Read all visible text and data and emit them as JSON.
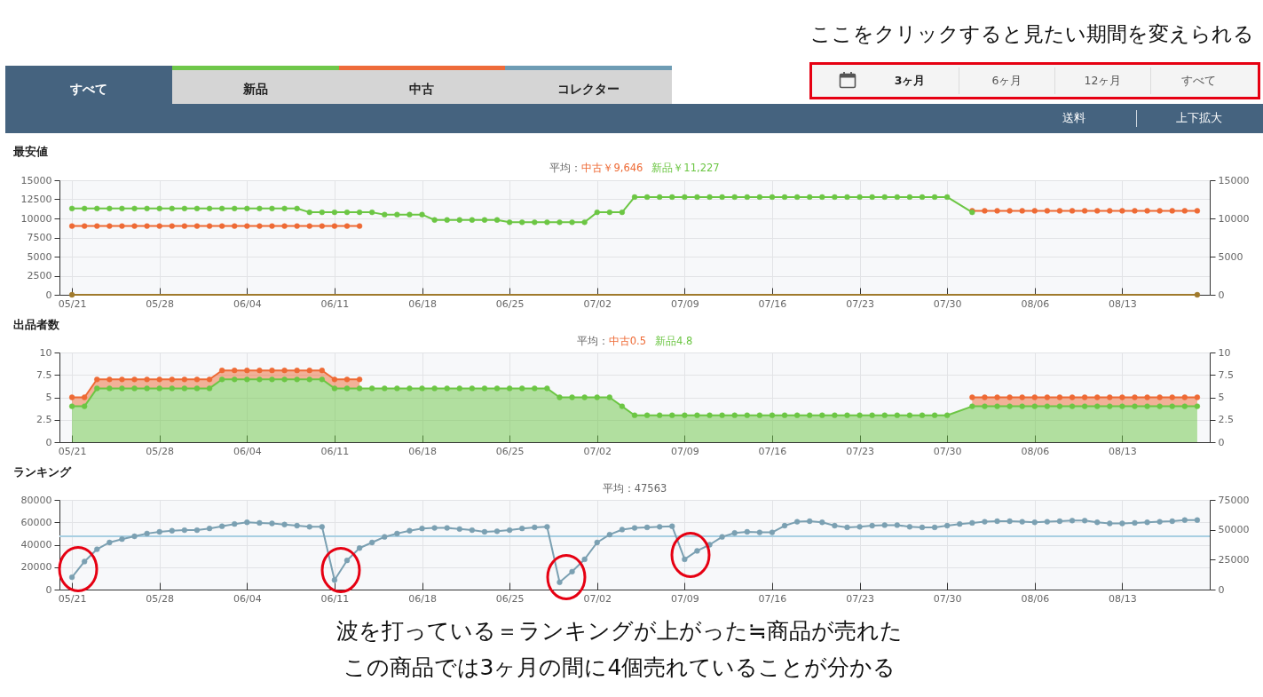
{
  "chart_data": [
    {
      "type": "other",
      "annotations": [
        "ここをクリックすると見たい期間を変えられる",
        "すべて",
        "新品",
        "中古",
        "コレクター",
        "3ヶ月",
        "6ヶ月",
        "12ヶ月",
        "すべて",
        "送料",
        "上下拡大"
      ]
    },
    {
      "type": "line",
      "title": "最安値",
      "legend_title": "平均：",
      "legend": "top",
      "grid": true,
      "marker": "circle",
      "xlim": [
        "--05-20",
        "--08-20"
      ],
      "xticks": [
        {
          "value": "--05-21",
          "label": "05/21"
        },
        {
          "value": "--05-28",
          "label": "05/28"
        },
        {
          "value": "--06-04",
          "label": "06/04"
        },
        {
          "value": "--06-11",
          "label": "06/11"
        },
        {
          "value": "--06-18",
          "label": "06/18"
        },
        {
          "value": "--06-25",
          "label": "06/25"
        },
        {
          "value": "--07-02",
          "label": "07/02"
        },
        {
          "value": "--07-09",
          "label": "07/09"
        },
        {
          "value": "--07-16",
          "label": "07/16"
        },
        {
          "value": "--07-23",
          "label": "07/23"
        },
        {
          "value": "--07-30",
          "label": "07/30"
        },
        {
          "value": "--08-06",
          "label": "08/06"
        },
        {
          "value": "--08-13",
          "label": "08/13"
        }
      ],
      "ylim": [
        0,
        15000
      ],
      "yticks": [
        0,
        2500,
        5000,
        7500,
        10000,
        12500,
        15000
      ],
      "y2lim": [
        0,
        15000
      ],
      "y2ticks": [
        0,
        5000,
        10000,
        15000
      ],
      "series": [
        {
          "name": "中古￥9,646",
          "color": "#ee6a35",
          "x": [
            "--05-21",
            "--05-22",
            "--05-23",
            "--05-24",
            "--05-25",
            "--05-26",
            "--05-27",
            "--05-28",
            "--05-29",
            "--05-30",
            "--05-31",
            "--06-01",
            "--06-02",
            "--06-03",
            "--06-04",
            "--06-05",
            "--06-06",
            "--06-07",
            "--06-08",
            "--06-09",
            "--06-10",
            "--06-11",
            "--06-12",
            "--06-13",
            "--06-14",
            "--08-01",
            "--08-02",
            "--08-03",
            "--08-04",
            "--08-05",
            "--08-06",
            "--08-07",
            "--08-08",
            "--08-09",
            "--08-10",
            "--08-11",
            "--08-12",
            "--08-13",
            "--08-14",
            "--08-15",
            "--08-16",
            "--08-17",
            "--08-18",
            "--08-19"
          ],
          "values": [
            9000,
            9000,
            9000,
            9000,
            9000,
            9000,
            9000,
            9000,
            9000,
            9000,
            9000,
            9000,
            9000,
            9000,
            9000,
            9000,
            9000,
            9000,
            9000,
            9000,
            9000,
            9000,
            9000,
            9000,
            null,
            11000,
            11000,
            11000,
            11000,
            11000,
            11000,
            11000,
            11000,
            11000,
            11000,
            11000,
            11000,
            11000,
            11000,
            11000,
            11000,
            11000,
            11000,
            11000
          ]
        },
        {
          "name": "新品￥11,227",
          "color": "#6cc644",
          "x": [
            "--05-21",
            "--05-22",
            "--05-23",
            "--05-24",
            "--05-25",
            "--05-26",
            "--05-27",
            "--05-28",
            "--05-29",
            "--05-30",
            "--05-31",
            "--06-01",
            "--06-02",
            "--06-03",
            "--06-04",
            "--06-05",
            "--06-06",
            "--06-07",
            "--06-08",
            "--06-09",
            "--06-10",
            "--06-11",
            "--06-12",
            "--06-13",
            "--06-14",
            "--06-15",
            "--06-16",
            "--06-17",
            "--06-18",
            "--06-19",
            "--06-20",
            "--06-21",
            "--06-22",
            "--06-23",
            "--06-24",
            "--06-25",
            "--06-26",
            "--06-27",
            "--06-28",
            "--06-29",
            "--06-30",
            "--07-01",
            "--07-02",
            "--07-03",
            "--07-04",
            "--07-05",
            "--07-06",
            "--07-07",
            "--07-08",
            "--07-09",
            "--07-10",
            "--07-11",
            "--07-12",
            "--07-13",
            "--07-14",
            "--07-15",
            "--07-16",
            "--07-17",
            "--07-18",
            "--07-19",
            "--07-20",
            "--07-21",
            "--07-22",
            "--07-23",
            "--07-24",
            "--07-25",
            "--07-26",
            "--07-27",
            "--07-28",
            "--07-29",
            "--07-30",
            "--08-01"
          ],
          "values": [
            11300,
            11300,
            11300,
            11300,
            11300,
            11300,
            11300,
            11300,
            11300,
            11300,
            11300,
            11300,
            11300,
            11300,
            11300,
            11300,
            11300,
            11300,
            11300,
            10800,
            10800,
            10800,
            10800,
            10800,
            10800,
            10500,
            10500,
            10500,
            10500,
            9800,
            9800,
            9800,
            9800,
            9800,
            9800,
            9500,
            9500,
            9500,
            9500,
            9500,
            9500,
            9500,
            10800,
            10800,
            10800,
            12800,
            12800,
            12800,
            12800,
            12800,
            12800,
            12800,
            12800,
            12800,
            12800,
            12800,
            12800,
            12800,
            12800,
            12800,
            12800,
            12800,
            12800,
            12800,
            12800,
            12800,
            12800,
            12800,
            12800,
            12800,
            12800,
            10800
          ]
        },
        {
          "color": "#a07a2c",
          "x": [
            "--05-21",
            "--08-19"
          ],
          "values": [
            0,
            0
          ]
        }
      ]
    },
    {
      "type": "area",
      "stacked": true,
      "title": "出品者数",
      "legend_title": "平均：",
      "legend": "top",
      "grid": true,
      "marker": "circle",
      "xlim": [
        "--05-20",
        "--08-20"
      ],
      "xticks": [
        {
          "value": "--05-21",
          "label": "05/21"
        },
        {
          "value": "--05-28",
          "label": "05/28"
        },
        {
          "value": "--06-04",
          "label": "06/04"
        },
        {
          "value": "--06-11",
          "label": "06/11"
        },
        {
          "value": "--06-18",
          "label": "06/18"
        },
        {
          "value": "--06-25",
          "label": "06/25"
        },
        {
          "value": "--07-02",
          "label": "07/02"
        },
        {
          "value": "--07-09",
          "label": "07/09"
        },
        {
          "value": "--07-16",
          "label": "07/16"
        },
        {
          "value": "--07-23",
          "label": "07/23"
        },
        {
          "value": "--07-30",
          "label": "07/30"
        },
        {
          "value": "--08-06",
          "label": "08/06"
        },
        {
          "value": "--08-13",
          "label": "08/13"
        }
      ],
      "ylim": [
        0,
        10
      ],
      "yticks": [
        0,
        2.5,
        5,
        7.5,
        10
      ],
      "y2lim": [
        0,
        10
      ],
      "y2ticks": [
        0,
        2.5,
        5,
        7.5,
        10
      ],
      "x": [
        "--05-21",
        "--05-22",
        "--05-23",
        "--05-24",
        "--05-25",
        "--05-26",
        "--05-27",
        "--05-28",
        "--05-29",
        "--05-30",
        "--05-31",
        "--06-01",
        "--06-02",
        "--06-03",
        "--06-04",
        "--06-05",
        "--06-06",
        "--06-07",
        "--06-08",
        "--06-09",
        "--06-10",
        "--06-11",
        "--06-12",
        "--06-13",
        "--06-14",
        "--06-15",
        "--06-16",
        "--06-17",
        "--06-18",
        "--06-19",
        "--06-20",
        "--06-21",
        "--06-22",
        "--06-23",
        "--06-24",
        "--06-25",
        "--06-26",
        "--06-27",
        "--06-28",
        "--06-29",
        "--06-30",
        "--07-01",
        "--07-02",
        "--07-03",
        "--07-04",
        "--07-05",
        "--07-06",
        "--07-07",
        "--07-08",
        "--07-09",
        "--07-10",
        "--07-11",
        "--07-12",
        "--07-13",
        "--07-14",
        "--07-15",
        "--07-16",
        "--07-17",
        "--07-18",
        "--07-19",
        "--07-20",
        "--07-21",
        "--07-22",
        "--07-23",
        "--07-24",
        "--07-25",
        "--07-26",
        "--07-27",
        "--07-28",
        "--07-29",
        "--07-30",
        "--08-01",
        "--08-02",
        "--08-03",
        "--08-04",
        "--08-05",
        "--08-06",
        "--08-07",
        "--08-08",
        "--08-09",
        "--08-10",
        "--08-11",
        "--08-12",
        "--08-13",
        "--08-14",
        "--08-15",
        "--08-16",
        "--08-17",
        "--08-18",
        "--08-19"
      ],
      "series": [
        {
          "name": "新品4.8",
          "color": "#6cc644",
          "values": [
            4,
            4,
            6,
            6,
            6,
            6,
            6,
            6,
            6,
            6,
            6,
            6,
            7,
            7,
            7,
            7,
            7,
            7,
            7,
            7,
            7,
            6,
            6,
            6,
            6,
            6,
            6,
            6,
            6,
            6,
            6,
            6,
            6,
            6,
            6,
            6,
            6,
            6,
            6,
            5,
            5,
            5,
            5,
            5,
            4,
            3,
            3,
            3,
            3,
            3,
            3,
            3,
            3,
            3,
            3,
            3,
            3,
            3,
            3,
            3,
            3,
            3,
            3,
            3,
            3,
            3,
            3,
            3,
            3,
            3,
            3,
            4,
            4,
            4,
            4,
            4,
            4,
            4,
            4,
            4,
            4,
            4,
            4,
            4,
            4,
            4,
            4,
            4,
            4,
            4
          ]
        },
        {
          "name": "中古0.5",
          "color": "#ee6a35",
          "values": [
            1,
            1,
            1,
            1,
            1,
            1,
            1,
            1,
            1,
            1,
            1,
            1,
            1,
            1,
            1,
            1,
            1,
            1,
            1,
            1,
            1,
            1,
            1,
            1,
            null,
            null,
            null,
            null,
            null,
            null,
            null,
            null,
            null,
            null,
            null,
            null,
            null,
            null,
            null,
            null,
            null,
            null,
            null,
            null,
            null,
            null,
            null,
            null,
            null,
            null,
            null,
            null,
            null,
            null,
            null,
            null,
            null,
            null,
            null,
            null,
            null,
            null,
            null,
            null,
            null,
            null,
            null,
            null,
            null,
            null,
            null,
            1,
            1,
            1,
            1,
            1,
            1,
            1,
            1,
            1,
            1,
            1,
            1,
            1,
            1,
            1,
            1,
            1,
            1,
            1
          ]
        }
      ]
    },
    {
      "type": "line",
      "title": "ランキング",
      "subtitle": "平均：47563",
      "grid": true,
      "marker": "circle",
      "xlim": [
        "--05-20",
        "--08-20"
      ],
      "xticks": [
        {
          "value": "--05-21",
          "label": "05/21"
        },
        {
          "value": "--05-28",
          "label": "05/28"
        },
        {
          "value": "--06-04",
          "label": "06/04"
        },
        {
          "value": "--06-11",
          "label": "06/11"
        },
        {
          "value": "--06-18",
          "label": "06/18"
        },
        {
          "value": "--06-25",
          "label": "06/25"
        },
        {
          "value": "--07-02",
          "label": "07/02"
        },
        {
          "value": "--07-09",
          "label": "07/09"
        },
        {
          "value": "--07-16",
          "label": "07/16"
        },
        {
          "value": "--07-23",
          "label": "07/23"
        },
        {
          "value": "--07-30",
          "label": "07/30"
        },
        {
          "value": "--08-06",
          "label": "08/06"
        },
        {
          "value": "--08-13",
          "label": "08/13"
        }
      ],
      "ylim": [
        0,
        80000
      ],
      "yticks": [
        0,
        20000,
        40000,
        60000,
        80000
      ],
      "y2lim": [
        0,
        75000
      ],
      "y2ticks": [
        0,
        25000,
        50000,
        75000
      ],
      "x": [
        "--05-21",
        "--05-22",
        "--05-23",
        "--05-24",
        "--05-25",
        "--05-26",
        "--05-27",
        "--05-28",
        "--05-29",
        "--05-30",
        "--05-31",
        "--06-01",
        "--06-02",
        "--06-03",
        "--06-04",
        "--06-05",
        "--06-06",
        "--06-07",
        "--06-08",
        "--06-09",
        "--06-10",
        "--06-11",
        "--06-12",
        "--06-13",
        "--06-14",
        "--06-15",
        "--06-16",
        "--06-17",
        "--06-18",
        "--06-19",
        "--06-20",
        "--06-21",
        "--06-22",
        "--06-23",
        "--06-24",
        "--06-25",
        "--06-26",
        "--06-27",
        "--06-28",
        "--06-29",
        "--06-30",
        "--07-01",
        "--07-02",
        "--07-03",
        "--07-04",
        "--07-05",
        "--07-06",
        "--07-07",
        "--07-08",
        "--07-09",
        "--07-10",
        "--07-11",
        "--07-12",
        "--07-13",
        "--07-14",
        "--07-15",
        "--07-16",
        "--07-17",
        "--07-18",
        "--07-19",
        "--07-20",
        "--07-21",
        "--07-22",
        "--07-23",
        "--07-24",
        "--07-25",
        "--07-26",
        "--07-27",
        "--07-28",
        "--07-29",
        "--07-30",
        "--07-31",
        "--08-01",
        "--08-02",
        "--08-03",
        "--08-04",
        "--08-05",
        "--08-06",
        "--08-07",
        "--08-08",
        "--08-09",
        "--08-10",
        "--08-11",
        "--08-12",
        "--08-13",
        "--08-14",
        "--08-15",
        "--08-16",
        "--08-17",
        "--08-18",
        "--08-19"
      ],
      "series": [
        {
          "color": "#7ba0b2",
          "values": [
            11000,
            25000,
            36000,
            42000,
            45000,
            47500,
            50000,
            51500,
            52500,
            53000,
            53000,
            54500,
            56500,
            58500,
            60000,
            59500,
            59000,
            58000,
            57000,
            56000,
            56000,
            8500,
            26000,
            37000,
            42000,
            47000,
            50000,
            52500,
            54500,
            55000,
            55000,
            54000,
            53000,
            51500,
            52000,
            53000,
            54500,
            55500,
            56000,
            6500,
            16000,
            27000,
            42000,
            49000,
            53500,
            55000,
            55500,
            56000,
            56500,
            27000,
            34500,
            40000,
            47000,
            50500,
            51500,
            51000,
            51000,
            57000,
            60500,
            61000,
            60000,
            57000,
            55500,
            56000,
            57000,
            57500,
            57500,
            56000,
            55500,
            55500,
            57000,
            58500,
            59500,
            60500,
            61000,
            61000,
            60500,
            60000,
            60500,
            61000,
            61500,
            61500,
            60000,
            59000,
            59000,
            59500,
            60000,
            60500,
            61000,
            62000,
            62000
          ]
        }
      ],
      "ref_lines": [
        {
          "axis": "y",
          "value": 47563,
          "color": "#a8cfe2"
        }
      ],
      "annotations": [
        "波を打っている＝ランキングが上がった≒商品が売れた",
        "この商品では3ヶ月の間に4個売れていることが分かる"
      ]
    }
  ]
}
